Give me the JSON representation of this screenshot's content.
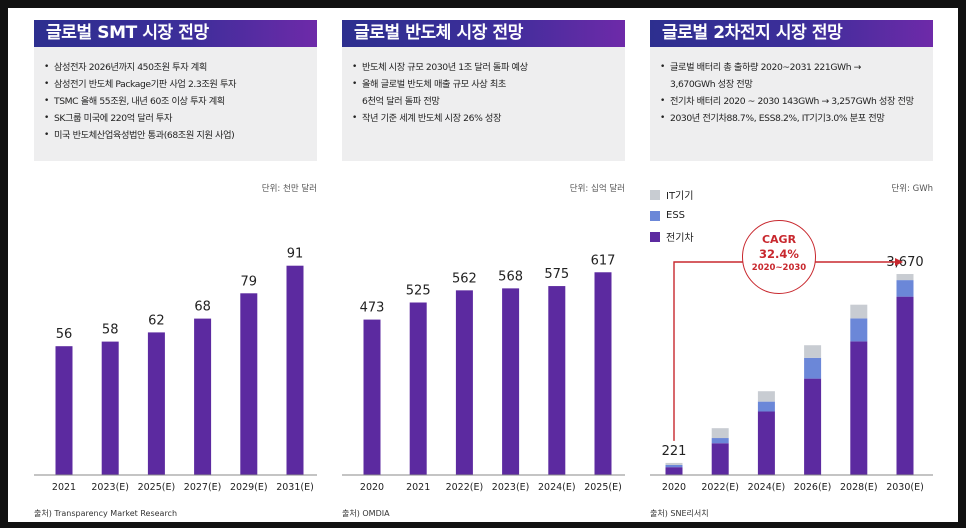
{
  "panels": [
    {
      "title": "글로벌 SMT 시장 전망",
      "bullets": [
        "삼성전자 2026년까지 450조원 투자 계획",
        "삼성전기 반도체 Package기판 사업 2.3조원 투자",
        "TSMC 올해 55조원, 내년 60조 이상 투자 계획",
        "SK그룹 미국에 220억 달러 투자",
        "미국 반도체산업육성법안 통과(68조원 지원 사업)"
      ],
      "unit": "단위: 천만 달러",
      "source": "출처) Transparency Market Research"
    },
    {
      "title": "글로벌 반도체 시장 전망",
      "bullets": [
        "반도체 시장 규모 2030년 1조 달러 돌파 예상",
        "올해 글로벌 반도체 매출 규모 사상 최초",
        "6천억 달러 돌파 전망",
        "작년 기준 세계 반도체 시장 26% 성장"
      ],
      "unit": "단위: 십억 달러",
      "source": "출처) OMDIA"
    },
    {
      "title": "글로벌 2차전지 시장 전망",
      "bullets": [
        "글로벌 배터리 총 출하량 2020~2031 221GWh →",
        "3,670GWh 성장 전망",
        "전기차 배터리 2020 ~ 2030 143GWh → 3,257GWh 성장 전망",
        "2030년 전기차88.7%, ESS8.2%, IT기기3.0% 분포 전망"
      ],
      "unit": "단위: GWh",
      "source": "출처) SNE리서치",
      "cagr": {
        "label": "CAGR",
        "value": "32.4%",
        "period": "2020~2030"
      }
    }
  ],
  "chart_data": [
    {
      "type": "bar",
      "categories": [
        "2021",
        "2023(E)",
        "2025(E)",
        "2027(E)",
        "2029(E)",
        "2031(E)"
      ],
      "values": [
        56,
        58,
        62,
        68,
        79,
        91
      ],
      "ylim": [
        0,
        100
      ],
      "colors": [
        "#5c2aa0"
      ]
    },
    {
      "type": "bar",
      "categories": [
        "2020",
        "2021",
        "2022(E)",
        "2023(E)",
        "2024(E)",
        "2025(E)"
      ],
      "values": [
        473,
        525,
        562,
        568,
        575,
        617
      ],
      "ylim": [
        0,
        700
      ],
      "colors": [
        "#5c2aa0"
      ]
    },
    {
      "type": "bar",
      "stacked": true,
      "categories": [
        "2020",
        "2022(E)",
        "2024(E)",
        "2026(E)",
        "2028(E)",
        "2030(E)"
      ],
      "series": [
        {
          "name": "전기차",
          "values": [
            143,
            580,
            1160,
            1760,
            2440,
            3257
          ]
        },
        {
          "name": "ESS",
          "values": [
            40,
            95,
            180,
            380,
            420,
            302
          ]
        },
        {
          "name": "IT기기",
          "values": [
            38,
            180,
            190,
            230,
            250,
            111
          ]
        }
      ],
      "totals_labels": {
        "0": "221",
        "5": "3,670"
      },
      "ylim": [
        0,
        4200
      ],
      "legend": "top-left",
      "colors": {
        "전기차": "#5c2aa0",
        "ESS": "#6b87d8",
        "IT기기": "#c8ccd2"
      }
    }
  ]
}
